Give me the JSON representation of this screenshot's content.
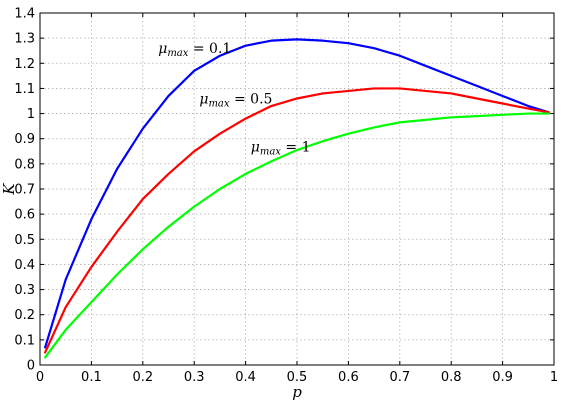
{
  "chart_data": {
    "type": "line",
    "xlabel": "p",
    "ylabel": "K",
    "xlim": [
      0,
      1
    ],
    "ylim": [
      0,
      1.4
    ],
    "xticks": [
      "0",
      "0.1",
      "0.2",
      "0.3",
      "0.4",
      "0.5",
      "0.6",
      "0.7",
      "0.8",
      "0.9",
      "1"
    ],
    "yticks": [
      "0",
      "0.1",
      "0.2",
      "0.3",
      "0.4",
      "0.5",
      "0.6",
      "0.7",
      "0.8",
      "0.9",
      "1",
      "1.1",
      "1.2",
      "1.3",
      "1.4"
    ],
    "grid": true,
    "x": [
      0.01,
      0.05,
      0.1,
      0.15,
      0.2,
      0.25,
      0.3,
      0.35,
      0.4,
      0.45,
      0.5,
      0.55,
      0.6,
      0.65,
      0.7,
      0.75,
      0.8,
      0.85,
      0.9,
      0.95,
      0.99
    ],
    "series": [
      {
        "color": "#0000ff",
        "label": "μmax = 0.1",
        "values": [
          0.07,
          0.34,
          0.58,
          0.78,
          0.94,
          1.07,
          1.17,
          1.23,
          1.27,
          1.29,
          1.295,
          1.29,
          1.28,
          1.26,
          1.23,
          1.19,
          1.15,
          1.11,
          1.07,
          1.03,
          1.005
        ]
      },
      {
        "color": "#ff0000",
        "label": "μmax = 0.5",
        "values": [
          0.05,
          0.23,
          0.39,
          0.53,
          0.66,
          0.76,
          0.85,
          0.92,
          0.98,
          1.03,
          1.06,
          1.08,
          1.09,
          1.1,
          1.1,
          1.09,
          1.08,
          1.06,
          1.04,
          1.02,
          1.005
        ]
      },
      {
        "color": "#00ff00",
        "label": "μmax = 1",
        "values": [
          0.03,
          0.14,
          0.25,
          0.36,
          0.46,
          0.55,
          0.63,
          0.7,
          0.76,
          0.81,
          0.855,
          0.89,
          0.92,
          0.945,
          0.965,
          0.975,
          0.985,
          0.99,
          0.995,
          1.0,
          1.0
        ]
      }
    ],
    "annotations": [
      {
        "base": "μ",
        "sub": "max",
        "rest": " = 0.1",
        "x": 0.23,
        "y": 1.24
      },
      {
        "base": "μ",
        "sub": "max",
        "rest": " = 0.5",
        "x": 0.31,
        "y": 1.04
      },
      {
        "base": "μ",
        "sub": "max",
        "rest": " = 1",
        "x": 0.41,
        "y": 0.85
      }
    ]
  }
}
